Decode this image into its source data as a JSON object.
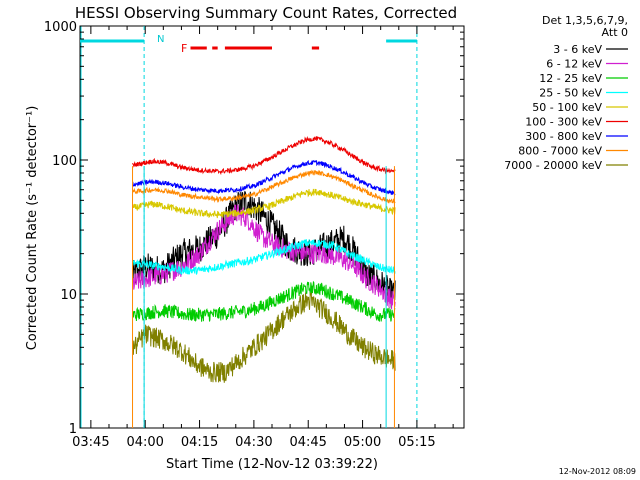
{
  "chart_data": {
    "type": "line",
    "title": "HESSI Observing Summary Count Rates, Corrected",
    "xlabel": "Start Time (12-Nov-12 03:39:22)",
    "ylabel": "Corrected Count Rate (s⁻¹ detector⁻¹)",
    "xlim": [
      222,
      328
    ],
    "ylim": [
      1,
      1000
    ],
    "yscale": "log",
    "x_ticks": [
      {
        "t": 225,
        "label": "03:45"
      },
      {
        "t": 240,
        "label": "04:00"
      },
      {
        "t": 255,
        "label": "04:15"
      },
      {
        "t": 270,
        "label": "04:30"
      },
      {
        "t": 285,
        "label": "04:45"
      },
      {
        "t": 300,
        "label": "05:00"
      },
      {
        "t": 315,
        "label": "05:15"
      }
    ],
    "y_ticks": [
      {
        "v": 1,
        "label": "1"
      },
      {
        "v": 10,
        "label": "10"
      },
      {
        "v": 100,
        "label": "100"
      },
      {
        "v": 1000,
        "label": "1000"
      }
    ],
    "legend_header": [
      "Det 1,3,5,6,7,9,",
      "Att 0"
    ],
    "legend_position": "right",
    "data_window": [
      236.5,
      309
    ],
    "series": [
      {
        "name": "3 - 6 keV",
        "color": "#000000",
        "noise": 0.25,
        "points": [
          [
            237,
            14
          ],
          [
            240,
            16
          ],
          [
            245,
            15
          ],
          [
            250,
            20
          ],
          [
            255,
            22
          ],
          [
            260,
            28
          ],
          [
            265,
            45
          ],
          [
            268,
            50
          ],
          [
            272,
            40
          ],
          [
            276,
            30
          ],
          [
            280,
            22
          ],
          [
            285,
            20
          ],
          [
            290,
            23
          ],
          [
            295,
            26
          ],
          [
            298,
            20
          ],
          [
            301,
            14
          ],
          [
            305,
            12
          ],
          [
            308,
            10
          ]
        ]
      },
      {
        "name": "6 - 12 keV",
        "color": "#d020d0",
        "noise": 0.18,
        "points": [
          [
            237,
            12
          ],
          [
            240,
            13
          ],
          [
            245,
            14
          ],
          [
            250,
            16
          ],
          [
            255,
            20
          ],
          [
            260,
            30
          ],
          [
            265,
            40
          ],
          [
            268,
            37
          ],
          [
            272,
            27
          ],
          [
            276,
            23
          ],
          [
            280,
            21
          ],
          [
            285,
            20
          ],
          [
            290,
            20
          ],
          [
            295,
            18
          ],
          [
            298,
            16
          ],
          [
            301,
            13
          ],
          [
            305,
            11
          ],
          [
            308,
            9
          ]
        ]
      },
      {
        "name": "12 - 25 keV",
        "color": "#00cc00",
        "noise": 0.12,
        "points": [
          [
            237,
            7
          ],
          [
            245,
            7.5
          ],
          [
            252,
            7
          ],
          [
            258,
            7
          ],
          [
            263,
            7.2
          ],
          [
            268,
            7.5
          ],
          [
            272,
            8
          ],
          [
            276,
            9
          ],
          [
            280,
            10
          ],
          [
            284,
            11
          ],
          [
            288,
            11
          ],
          [
            292,
            10
          ],
          [
            296,
            9
          ],
          [
            300,
            8
          ],
          [
            304,
            7
          ],
          [
            308,
            7
          ]
        ]
      },
      {
        "name": "25 - 50 keV",
        "color": "#00ffff",
        "noise": 0.07,
        "points": [
          [
            237,
            17
          ],
          [
            245,
            16
          ],
          [
            250,
            15
          ],
          [
            255,
            15
          ],
          [
            260,
            16
          ],
          [
            265,
            17
          ],
          [
            270,
            18
          ],
          [
            275,
            20
          ],
          [
            280,
            22
          ],
          [
            284,
            24
          ],
          [
            288,
            24
          ],
          [
            292,
            23
          ],
          [
            296,
            20
          ],
          [
            300,
            18
          ],
          [
            304,
            16
          ],
          [
            308,
            15
          ]
        ]
      },
      {
        "name": "50 - 100 keV",
        "color": "#d8c800",
        "noise": 0.06,
        "points": [
          [
            237,
            44
          ],
          [
            242,
            47
          ],
          [
            246,
            45
          ],
          [
            250,
            42
          ],
          [
            255,
            40
          ],
          [
            260,
            39
          ],
          [
            265,
            40
          ],
          [
            270,
            42
          ],
          [
            275,
            46
          ],
          [
            280,
            52
          ],
          [
            284,
            57
          ],
          [
            288,
            58
          ],
          [
            292,
            54
          ],
          [
            296,
            50
          ],
          [
            300,
            47
          ],
          [
            304,
            44
          ],
          [
            308,
            42
          ]
        ]
      },
      {
        "name": "100 - 300 keV",
        "color": "#ee0000",
        "noise": 0.04,
        "points": [
          [
            237,
            92
          ],
          [
            242,
            98
          ],
          [
            246,
            95
          ],
          [
            250,
            88
          ],
          [
            255,
            84
          ],
          [
            260,
            82
          ],
          [
            265,
            84
          ],
          [
            270,
            90
          ],
          [
            275,
            105
          ],
          [
            280,
            125
          ],
          [
            284,
            140
          ],
          [
            287,
            145
          ],
          [
            290,
            138
          ],
          [
            294,
            122
          ],
          [
            298,
            104
          ],
          [
            302,
            90
          ],
          [
            305,
            85
          ],
          [
            308,
            82
          ]
        ]
      },
      {
        "name": "300 - 800 keV",
        "color": "#0000ff",
        "noise": 0.04,
        "points": [
          [
            237,
            66
          ],
          [
            242,
            69
          ],
          [
            246,
            67
          ],
          [
            250,
            63
          ],
          [
            255,
            60
          ],
          [
            260,
            59
          ],
          [
            265,
            60
          ],
          [
            270,
            64
          ],
          [
            275,
            74
          ],
          [
            280,
            86
          ],
          [
            284,
            94
          ],
          [
            287,
            96
          ],
          [
            290,
            92
          ],
          [
            294,
            83
          ],
          [
            298,
            73
          ],
          [
            302,
            64
          ],
          [
            305,
            60
          ],
          [
            308,
            57
          ]
        ]
      },
      {
        "name": "800 - 7000 keV",
        "color": "#ff8800",
        "noise": 0.04,
        "points": [
          [
            237,
            58
          ],
          [
            242,
            60
          ],
          [
            246,
            59
          ],
          [
            250,
            55
          ],
          [
            255,
            53
          ],
          [
            260,
            51
          ],
          [
            265,
            52
          ],
          [
            270,
            55
          ],
          [
            275,
            63
          ],
          [
            280,
            72
          ],
          [
            284,
            79
          ],
          [
            287,
            81
          ],
          [
            290,
            78
          ],
          [
            294,
            71
          ],
          [
            298,
            63
          ],
          [
            302,
            56
          ],
          [
            305,
            52
          ],
          [
            308,
            49
          ]
        ]
      },
      {
        "name": "7000 - 20000 keV",
        "color": "#808000",
        "noise": 0.18,
        "points": [
          [
            237,
            4
          ],
          [
            240,
            5
          ],
          [
            245,
            4.5
          ],
          [
            250,
            3.8
          ],
          [
            254,
            3
          ],
          [
            258,
            2.6
          ],
          [
            262,
            2.6
          ],
          [
            266,
            3.2
          ],
          [
            270,
            4
          ],
          [
            274,
            5
          ],
          [
            278,
            6.5
          ],
          [
            282,
            8
          ],
          [
            285,
            9
          ],
          [
            288,
            8
          ],
          [
            292,
            6.5
          ],
          [
            296,
            5
          ],
          [
            300,
            4
          ],
          [
            304,
            3.5
          ],
          [
            308,
            3.2
          ]
        ]
      }
    ],
    "annotations": {
      "night_marker": {
        "label": "N",
        "t": 239.7,
        "color": "#00d8e0"
      },
      "flare_marker": {
        "label": "F",
        "color": "#ee0000",
        "y": 800
      }
    },
    "flare_intervals": [
      [
        252.5,
        257
      ],
      [
        258.5,
        260
      ],
      [
        262,
        275
      ],
      [
        286,
        288
      ]
    ],
    "night_intervals": [
      [
        222,
        239.7
      ],
      [
        306.5,
        315
      ]
    ],
    "drop_lines": [
      {
        "t": 236.5,
        "color": "#ff8800"
      },
      {
        "t": 239.7,
        "color": "#00d8e0"
      },
      {
        "t": 306.5,
        "color": "#00d8e0"
      },
      {
        "t": 308.8,
        "color": "#ff8800"
      }
    ]
  },
  "footer_timestamp": "12-Nov-2012 08:09"
}
